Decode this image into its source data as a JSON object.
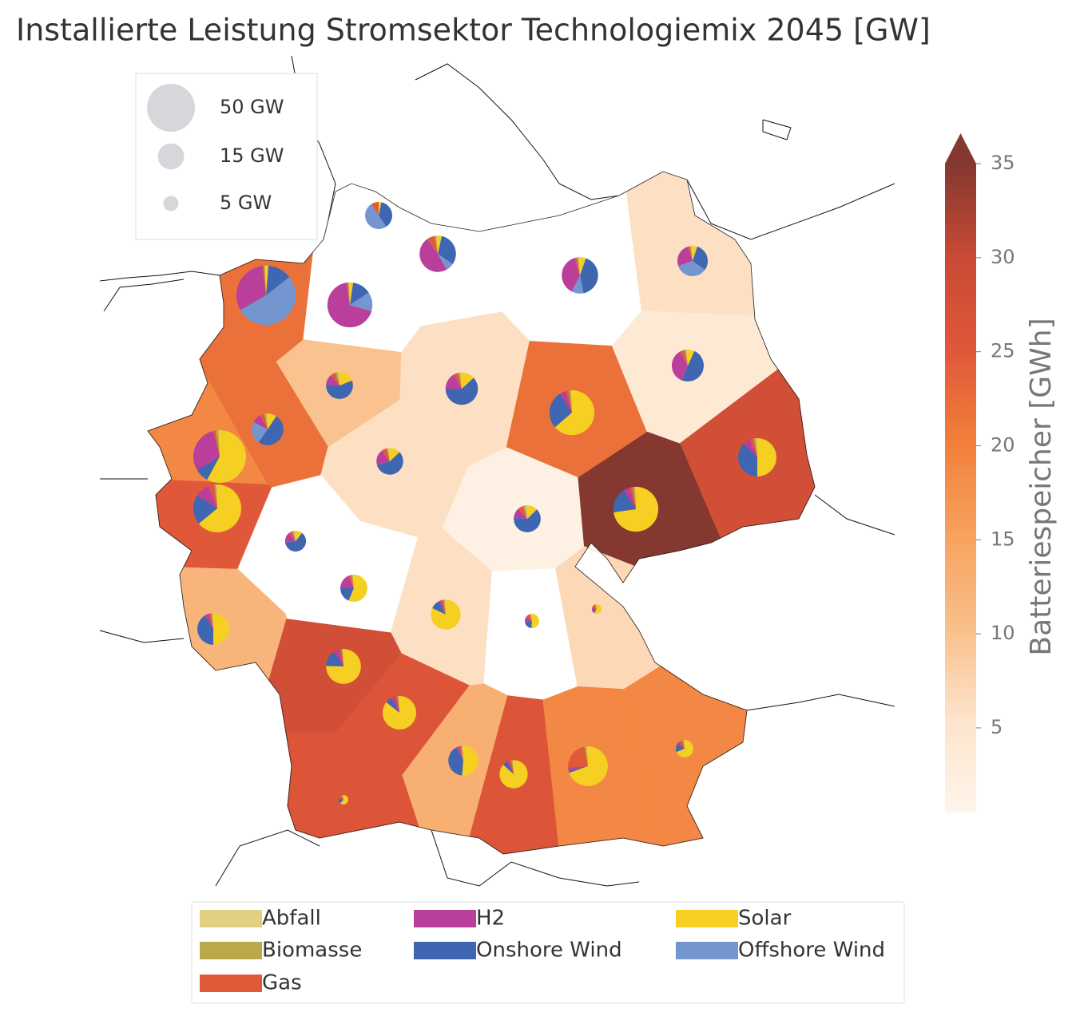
{
  "title": "Installierte Leistung Stromsektor Technologiemix 2045 [GW]",
  "size_legend": [
    {
      "value": 50,
      "label": "50 GW"
    },
    {
      "value": 15,
      "label": "15 GW"
    },
    {
      "value": 5,
      "label": "5 GW"
    }
  ],
  "size_legend_color": "#d6d7da",
  "colorbar": {
    "label": "Batteriespeicher [GWh]",
    "lim": [
      0.5,
      35
    ],
    "ticks": [
      5,
      10,
      15,
      20,
      25,
      30,
      35
    ],
    "extend": "max",
    "colors": [
      "#fff5eb",
      "#fde4cc",
      "#f9bf8a",
      "#f7a25e",
      "#f17f3a",
      "#e0573a",
      "#c84a35",
      "#84382f"
    ],
    "under_color": "#ffffff"
  },
  "technologies": [
    {
      "name": "Abfall",
      "color": "#e0d080"
    },
    {
      "name": "Biomasse",
      "color": "#baa94a"
    },
    {
      "name": "Gas",
      "color": "#e05a38"
    },
    {
      "name": "H2",
      "color": "#b93f9b"
    },
    {
      "name": "Onshore Wind",
      "color": "#3f66b0"
    },
    {
      "name": "Solar",
      "color": "#f5cf22"
    },
    {
      "name": "Offshore Wind",
      "color": "#7396d0"
    }
  ],
  "regions": [
    {
      "battery": 0,
      "capacity": [
        0,
        0,
        1.5,
        0,
        6,
        0.5,
        8
      ]
    },
    {
      "battery": 0,
      "capacity": [
        0.3,
        0.5,
        2,
        14,
        9,
        1,
        2
      ]
    },
    {
      "battery": 0,
      "capacity": [
        0.3,
        0.5,
        0.5,
        11,
        12,
        1.5,
        3
      ]
    },
    {
      "battery": 6,
      "capacity": [
        0.3,
        0.3,
        0.5,
        5,
        6,
        1,
        7
      ]
    },
    {
      "battery": 22,
      "capacity": [
        0.5,
        0.5,
        0.5,
        24,
        10,
        1,
        40
      ]
    },
    {
      "battery": 0,
      "capacity": [
        0.3,
        0.3,
        0.5,
        30,
        6,
        1,
        6
      ]
    },
    {
      "battery": 10,
      "capacity": [
        0.3,
        0.5,
        1,
        2,
        9,
        3,
        0
      ]
    },
    {
      "battery": 6,
      "capacity": [
        0.3,
        0.5,
        1,
        4,
        14,
        3,
        0
      ]
    },
    {
      "battery": 22,
      "capacity": [
        0.3,
        0.7,
        1,
        2,
        12,
        28,
        0
      ]
    },
    {
      "battery": 4,
      "capacity": [
        0.3,
        0.5,
        1,
        8,
        11,
        1.5,
        0
      ]
    },
    {
      "battery": 22,
      "capacity": [
        0.3,
        0.5,
        1,
        2,
        11,
        2,
        5
      ]
    },
    {
      "battery": 19,
      "capacity": [
        0.5,
        1,
        1,
        18,
        5,
        35,
        0
      ]
    },
    {
      "battery": 6,
      "capacity": [
        0.3,
        0.3,
        1,
        3,
        9,
        2,
        0
      ]
    },
    {
      "battery": 28,
      "capacity": [
        0.3,
        0.7,
        1,
        2,
        12,
        16,
        0
      ]
    },
    {
      "battery": 25,
      "capacity": [
        0.3,
        0.7,
        2,
        5,
        10,
        32,
        0
      ]
    },
    {
      "battery": 2,
      "capacity": [
        0.3,
        0.5,
        1,
        2,
        10,
        2,
        0
      ]
    },
    {
      "battery": 35,
      "capacity": [
        0.3,
        0.7,
        1,
        2,
        8,
        32,
        0
      ]
    },
    {
      "battery": 0,
      "capacity": [
        0.2,
        0.3,
        0.5,
        1.5,
        6,
        1,
        0
      ]
    },
    {
      "battery": 0,
      "capacity": [
        0.2,
        0.3,
        0.5,
        3,
        3,
        9,
        0
      ]
    },
    {
      "battery": 6,
      "capacity": [
        0.2,
        0.3,
        0.5,
        0.5,
        2,
        16,
        0
      ]
    },
    {
      "battery": 0,
      "capacity": [
        0.1,
        0.1,
        0.5,
        0.5,
        1,
        2.3,
        0
      ]
    },
    {
      "battery": 7,
      "capacity": [
        0.05,
        0.1,
        0.3,
        0.2,
        0.2,
        1.2,
        0
      ]
    },
    {
      "battery": 12,
      "capacity": [
        0.2,
        0.3,
        0.5,
        1,
        9,
        11,
        0
      ]
    },
    {
      "battery": 28,
      "capacity": [
        0.2,
        0.3,
        0.5,
        1.5,
        4,
        20,
        0
      ]
    },
    {
      "battery": 26,
      "capacity": [
        0.2,
        0.3,
        0.5,
        1,
        1.5,
        21,
        0
      ]
    },
    {
      "battery": 13,
      "capacity": [
        0.2,
        0.3,
        0.5,
        0.5,
        8,
        10,
        0
      ]
    },
    {
      "battery": 26,
      "capacity": [
        0.2,
        0.3,
        0.5,
        0.3,
        1,
        15,
        0
      ]
    },
    {
      "battery": 19,
      "capacity": [
        0.3,
        0.7,
        8,
        1,
        0.5,
        24,
        0
      ]
    },
    {
      "battery": 19,
      "capacity": [
        0.1,
        0.2,
        0.5,
        0.3,
        1,
        4.6,
        0
      ]
    },
    {
      "battery": 26,
      "capacity": [
        0.05,
        0.1,
        0.2,
        0.1,
        0.3,
        1.2,
        0
      ]
    }
  ]
}
